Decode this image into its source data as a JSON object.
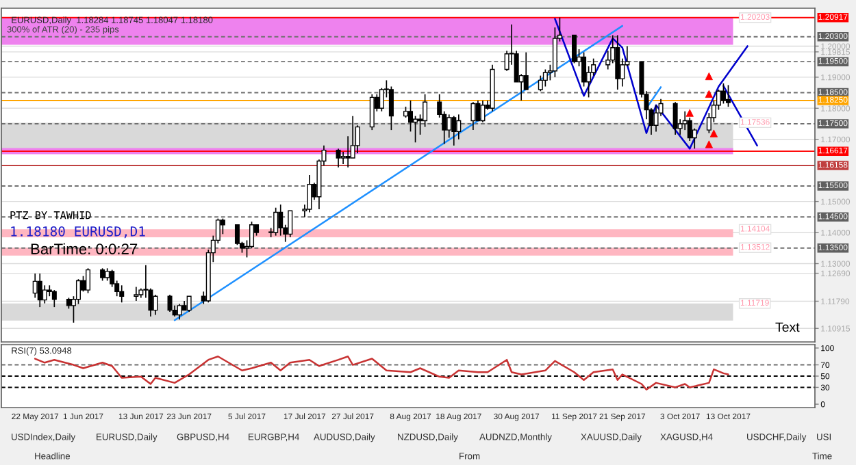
{
  "chart_data": [
    {
      "type": "candlestick",
      "title": "EURUSD,Daily  1.18284 1.18745 1.18047 1.18180",
      "x": [
        "2017-05-22",
        "2017-05-23",
        "2017-05-24",
        "2017-05-25",
        "2017-05-26",
        "2017-05-29",
        "2017-05-30",
        "2017-05-31",
        "2017-06-01",
        "2017-06-02",
        "2017-06-05",
        "2017-06-06",
        "2017-06-07",
        "2017-06-08",
        "2017-06-09",
        "2017-06-12",
        "2017-06-13",
        "2017-06-14",
        "2017-06-15",
        "2017-06-16",
        "2017-06-19",
        "2017-06-20",
        "2017-06-21",
        "2017-06-22",
        "2017-06-23",
        "2017-06-26",
        "2017-06-27",
        "2017-06-28",
        "2017-06-29",
        "2017-06-30",
        "2017-07-03",
        "2017-07-04",
        "2017-07-05",
        "2017-07-06",
        "2017-07-07",
        "2017-07-10",
        "2017-07-11",
        "2017-07-12",
        "2017-07-13",
        "2017-07-14",
        "2017-07-17",
        "2017-07-18",
        "2017-07-19",
        "2017-07-20",
        "2017-07-21",
        "2017-07-24",
        "2017-07-25",
        "2017-07-26",
        "2017-07-27",
        "2017-07-28",
        "2017-07-31",
        "2017-08-01",
        "2017-08-02",
        "2017-08-03",
        "2017-08-04",
        "2017-08-07",
        "2017-08-08",
        "2017-08-09",
        "2017-08-10",
        "2017-08-11",
        "2017-08-14",
        "2017-08-15",
        "2017-08-16",
        "2017-08-17",
        "2017-08-18",
        "2017-08-21",
        "2017-08-22",
        "2017-08-23",
        "2017-08-24",
        "2017-08-25",
        "2017-08-28",
        "2017-08-29",
        "2017-08-30",
        "2017-08-31",
        "2017-09-01",
        "2017-09-04",
        "2017-09-05",
        "2017-09-06",
        "2017-09-07",
        "2017-09-08",
        "2017-09-11",
        "2017-09-12",
        "2017-09-13",
        "2017-09-14",
        "2017-09-15",
        "2017-09-18",
        "2017-09-19",
        "2017-09-20",
        "2017-09-21",
        "2017-09-22",
        "2017-09-25",
        "2017-09-26",
        "2017-09-27",
        "2017-09-28",
        "2017-09-29",
        "2017-10-02",
        "2017-10-03",
        "2017-10-04",
        "2017-10-05",
        "2017-10-06",
        "2017-10-09",
        "2017-10-10",
        "2017-10-11",
        "2017-10-12",
        "2017-10-13"
      ],
      "ohlc": [
        [
          1.1205,
          1.1268,
          1.119,
          1.1243
        ],
        [
          1.1243,
          1.1268,
          1.116,
          1.1183
        ],
        [
          1.1183,
          1.123,
          1.1172,
          1.1215
        ],
        [
          1.1215,
          1.123,
          1.1195,
          1.121
        ],
        [
          1.121,
          1.1215,
          1.116,
          1.1185
        ],
        [
          1.1185,
          1.119,
          1.1155,
          1.1165
        ],
        [
          1.1165,
          1.1195,
          1.111,
          1.1185
        ],
        [
          1.1185,
          1.125,
          1.117,
          1.1245
        ],
        [
          1.1245,
          1.126,
          1.121,
          1.1215
        ],
        [
          1.1215,
          1.1285,
          1.1205,
          1.128
        ],
        [
          1.128,
          1.1285,
          1.1245,
          1.1255
        ],
        [
          1.1255,
          1.1285,
          1.1245,
          1.1275
        ],
        [
          1.1275,
          1.128,
          1.1225,
          1.1235
        ],
        [
          1.1235,
          1.1245,
          1.1195,
          1.121
        ],
        [
          1.121,
          1.123,
          1.1175,
          1.1195
        ],
        [
          1.1195,
          1.1225,
          1.118,
          1.12
        ],
        [
          1.12,
          1.122,
          1.119,
          1.1215
        ],
        [
          1.1215,
          1.1295,
          1.119,
          1.1215
        ],
        [
          1.1215,
          1.122,
          1.113,
          1.115
        ],
        [
          1.115,
          1.12,
          1.1135,
          1.1195
        ],
        [
          1.1195,
          1.12,
          1.1145,
          1.115
        ],
        [
          1.115,
          1.1165,
          1.113,
          1.1135
        ],
        [
          1.1135,
          1.117,
          1.112,
          1.1165
        ],
        [
          1.1165,
          1.118,
          1.115,
          1.115
        ],
        [
          1.115,
          1.1195,
          1.1145,
          1.1195
        ],
        [
          1.1195,
          1.121,
          1.117,
          1.118
        ],
        [
          1.118,
          1.1345,
          1.1175,
          1.1335
        ],
        [
          1.1335,
          1.139,
          1.1305,
          1.1375
        ],
        [
          1.1375,
          1.1445,
          1.1365,
          1.144
        ],
        [
          1.144,
          1.1445,
          1.1395,
          1.1425
        ],
        [
          1.1425,
          1.1425,
          1.136,
          1.1365
        ],
        [
          1.1365,
          1.137,
          1.1335,
          1.135
        ],
        [
          1.135,
          1.1375,
          1.132,
          1.1355
        ],
        [
          1.1355,
          1.1435,
          1.135,
          1.1425
        ],
        [
          1.1425,
          1.1425,
          1.139,
          1.14
        ],
        [
          1.14,
          1.1415,
          1.1385,
          1.14
        ],
        [
          1.14,
          1.148,
          1.139,
          1.1465
        ],
        [
          1.1465,
          1.149,
          1.139,
          1.1415
        ],
        [
          1.1415,
          1.1425,
          1.137,
          1.1395
        ],
        [
          1.1395,
          1.147,
          1.1385,
          1.147
        ],
        [
          1.147,
          1.149,
          1.145,
          1.1475
        ],
        [
          1.1475,
          1.1585,
          1.1465,
          1.1555
        ],
        [
          1.1555,
          1.156,
          1.1505,
          1.1515
        ],
        [
          1.1515,
          1.1635,
          1.1475,
          1.163
        ],
        [
          1.163,
          1.168,
          1.1615,
          1.1665
        ],
        [
          1.1665,
          1.167,
          1.161,
          1.164
        ],
        [
          1.164,
          1.166,
          1.162,
          1.1645
        ],
        [
          1.1645,
          1.171,
          1.161,
          1.164
        ],
        [
          1.164,
          1.1775,
          1.164,
          1.168
        ],
        [
          1.168,
          1.1745,
          1.1655,
          1.174
        ],
        [
          1.174,
          1.1845,
          1.173,
          1.1835
        ],
        [
          1.1835,
          1.1845,
          1.179,
          1.18
        ],
        [
          1.18,
          1.1865,
          1.179,
          1.186
        ],
        [
          1.186,
          1.189,
          1.1835,
          1.186
        ],
        [
          1.186,
          1.187,
          1.173,
          1.1775
        ],
        [
          1.1775,
          1.1805,
          1.177,
          1.179
        ],
        [
          1.179,
          1.1825,
          1.1725,
          1.1755
        ],
        [
          1.1755,
          1.1775,
          1.169,
          1.1765
        ],
        [
          1.1765,
          1.178,
          1.1715,
          1.176
        ],
        [
          1.176,
          1.1845,
          1.174,
          1.182
        ],
        [
          1.182,
          1.1845,
          1.177,
          1.178
        ],
        [
          1.178,
          1.179,
          1.1685,
          1.173
        ],
        [
          1.173,
          1.178,
          1.1705,
          1.177
        ],
        [
          1.177,
          1.1775,
          1.168,
          1.1725
        ],
        [
          1.1725,
          1.178,
          1.17,
          1.176
        ],
        [
          1.176,
          1.182,
          1.173,
          1.1815
        ],
        [
          1.1815,
          1.1825,
          1.176,
          1.176
        ],
        [
          1.176,
          1.1825,
          1.1755,
          1.181
        ],
        [
          1.181,
          1.1825,
          1.1795,
          1.18
        ],
        [
          1.18,
          1.194,
          1.179,
          1.1925
        ],
        [
          1.1925,
          1.1985,
          1.192,
          1.1975
        ],
        [
          1.1975,
          1.207,
          1.194,
          1.1975
        ],
        [
          1.1975,
          1.1985,
          1.1885,
          1.1885
        ],
        [
          1.1885,
          1.191,
          1.1825,
          1.1905
        ],
        [
          1.1905,
          1.198,
          1.186,
          1.186
        ],
        [
          1.186,
          1.1905,
          1.1855,
          1.189
        ],
        [
          1.189,
          1.1925,
          1.187,
          1.1915
        ],
        [
          1.1915,
          1.194,
          1.189,
          1.192
        ],
        [
          1.192,
          1.206,
          1.19,
          1.2025
        ],
        [
          1.2025,
          1.2092,
          1.2015,
          1.2035
        ],
        [
          1.2035,
          1.2035,
          1.1945,
          1.195
        ],
        [
          1.195,
          1.199,
          1.1935,
          1.1965
        ],
        [
          1.1965,
          1.198,
          1.187,
          1.1885
        ],
        [
          1.1885,
          1.1935,
          1.1835,
          1.1915
        ],
        [
          1.1915,
          1.196,
          1.1905,
          1.194
        ],
        [
          1.194,
          1.1985,
          1.1925,
          1.1955
        ],
        [
          1.1955,
          1.2035,
          1.1945,
          1.1995
        ],
        [
          1.1995,
          1.2035,
          1.186,
          1.1895
        ],
        [
          1.1895,
          1.196,
          1.187,
          1.194
        ],
        [
          1.194,
          1.2,
          1.1935,
          1.195
        ],
        [
          1.195,
          1.195,
          1.1835,
          1.1845
        ],
        [
          1.1845,
          1.1855,
          1.1765,
          1.1795
        ],
        [
          1.1795,
          1.18,
          1.1715,
          1.1745
        ],
        [
          1.1745,
          1.181,
          1.1725,
          1.1785
        ],
        [
          1.1785,
          1.183,
          1.1775,
          1.1815
        ],
        [
          1.1815,
          1.182,
          1.1715,
          1.1735
        ],
        [
          1.1735,
          1.1765,
          1.1715,
          1.175
        ],
        [
          1.175,
          1.179,
          1.173,
          1.176
        ],
        [
          1.176,
          1.177,
          1.1695,
          1.1705
        ],
        [
          1.1705,
          1.1735,
          1.167,
          1.173
        ],
        [
          1.173,
          1.1785,
          1.172,
          1.177
        ],
        [
          1.177,
          1.1825,
          1.1755,
          1.181
        ],
        [
          1.181,
          1.186,
          1.1795,
          1.1855
        ],
        [
          1.1855,
          1.188,
          1.1815,
          1.1825
        ],
        [
          1.18284,
          1.18745,
          1.18047,
          1.1818
        ]
      ],
      "series": [
        {
          "type": "line",
          "color": "#1e90ff",
          "x": [
            "2017-06-20",
            "2017-09-21"
          ],
          "values": [
            1.1118,
            1.2065
          ]
        },
        {
          "type": "line",
          "color": "#1e90ff",
          "x": [
            "2017-09-26",
            "2017-09-29"
          ],
          "values": [
            1.18,
            1.1868
          ]
        },
        {
          "type": "line",
          "color": "#0000cd",
          "x": [
            "2017-09-07",
            "2017-09-13",
            "2017-09-19",
            "2017-09-21",
            "2017-09-26",
            "2017-09-28",
            "2017-10-05",
            "2017-10-11",
            "2017-10-17"
          ],
          "values": [
            1.2088,
            1.184,
            1.2025,
            1.1995,
            1.172,
            1.181,
            1.167,
            1.187,
            1.2
          ]
        },
        {
          "type": "line",
          "color": "#0000cd",
          "x": [
            "2017-10-12",
            "2017-10-19"
          ],
          "values": [
            1.1872,
            1.168
          ]
        },
        {
          "type": "scatter",
          "color": "#ff0000",
          "marker": "triangle",
          "x": [
            "2017-10-05",
            "2017-10-09",
            "2017-10-09",
            "2017-10-10",
            "2017-10-09"
          ],
          "values": [
            1.1785,
            1.1846,
            1.1903,
            1.1719,
            1.1684
          ]
        }
      ],
      "xlim": [
        "2017-05-15",
        "2017-10-31"
      ],
      "ylim": [
        1.1048,
        1.2122
      ],
      "yticks": [
        {
          "value": 1.2,
          "label": "1.20000"
        },
        {
          "value": 1.19815,
          "label": "1.19815"
        },
        {
          "value": 1.19,
          "label": "1.19000"
        },
        {
          "value": 1.18,
          "label": "1.18000"
        },
        {
          "value": 1.17,
          "label": "1.17000"
        },
        {
          "value": 1.15,
          "label": "1.15000"
        },
        {
          "value": 1.14,
          "label": "1.14000"
        },
        {
          "value": 1.13,
          "label": "1.13000"
        },
        {
          "value": 1.1269,
          "label": "1.12690"
        },
        {
          "value": 1.1179,
          "label": "1.11790"
        },
        {
          "value": 1.10915,
          "label": "1.10915"
        }
      ],
      "tick_labels": "y",
      "grid": "y",
      "legend": false,
      "ref_lines": [
        {
          "axis": "y",
          "value": 1.20917,
          "label": "1.20917",
          "color": "#ff0000",
          "line_style": "solid"
        },
        {
          "axis": "y",
          "value": 1.203,
          "label": "1.20300",
          "color": "#707070",
          "line_style": "dashed"
        },
        {
          "axis": "y",
          "value": 1.195,
          "label": "1.19500",
          "color": "#707070",
          "line_style": "dashed"
        },
        {
          "axis": "y",
          "value": 1.185,
          "label": "1.18500",
          "color": "#707070",
          "line_style": "dashed"
        },
        {
          "axis": "y",
          "value": 1.1825,
          "label": "1.18250",
          "color": "#ffa500",
          "line_style": "solid"
        },
        {
          "axis": "y",
          "value": 1.175,
          "label": "1.17500",
          "color": "#707070",
          "line_style": "dashed"
        },
        {
          "axis": "y",
          "value": 1.16617,
          "label": "1.16617",
          "color": "#ff0000",
          "line_style": "solid"
        },
        {
          "axis": "y",
          "value": 1.16158,
          "label": "1.16158",
          "color": "#c04040",
          "line_style": "solid"
        },
        {
          "axis": "y",
          "value": 1.155,
          "label": "1.15500",
          "color": "#707070",
          "line_style": "dashed"
        },
        {
          "axis": "y",
          "value": 1.145,
          "label": "1.14500",
          "color": "#707070",
          "line_style": "dashed"
        },
        {
          "axis": "y",
          "value": 1.135,
          "label": "1.13500",
          "color": "#707070",
          "line_style": "dashed"
        }
      ],
      "bands": [
        {
          "axis": "y",
          "from": 1.2004,
          "to": 1.20917,
          "label": "1.20203",
          "color": "#ee82ee"
        },
        {
          "axis": "y",
          "from": 1.16617,
          "to": 1.17536,
          "label": "1.17536",
          "color": "#d9d9d9"
        },
        {
          "axis": "y",
          "from": 1.1652,
          "to": 1.1672,
          "color": "#ee82ee"
        },
        {
          "axis": "y",
          "from": 1.1385,
          "to": 1.14104,
          "label": "1.14104",
          "color": "#ffb6c1"
        },
        {
          "axis": "y",
          "from": 1.1326,
          "to": 1.13512,
          "label": "1.13512",
          "color": "#ffb6c1"
        },
        {
          "axis": "y",
          "from": 1.1117,
          "to": 1.11719,
          "label": "1.11719",
          "color": "#d9d9d9"
        }
      ],
      "annotations": [
        "300% of ATR (20) - 235 pips",
        "PTZ BY TAWHID",
        "1.18180 EURUSD,D1",
        "BarTime: 0:0:27",
        "Text"
      ]
    },
    {
      "type": "line",
      "title": "RSI(7) 53.0948",
      "series": [
        {
          "color": "#c83232",
          "x": [
            "2017-05-22",
            "2017-05-24",
            "2017-05-26",
            "2017-05-30",
            "2017-06-01",
            "2017-06-05",
            "2017-06-07",
            "2017-06-09",
            "2017-06-13",
            "2017-06-15",
            "2017-06-16",
            "2017-06-20",
            "2017-06-23",
            "2017-06-27",
            "2017-06-29",
            "2017-07-04",
            "2017-07-06",
            "2017-07-10",
            "2017-07-12",
            "2017-07-14",
            "2017-07-18",
            "2017-07-20",
            "2017-07-24",
            "2017-07-26",
            "2017-07-27",
            "2017-07-31",
            "2017-08-03",
            "2017-08-08",
            "2017-08-10",
            "2017-08-14",
            "2017-08-16",
            "2017-08-18",
            "2017-08-22",
            "2017-08-24",
            "2017-08-28",
            "2017-08-29",
            "2017-08-31",
            "2017-09-05",
            "2017-09-07",
            "2017-09-11",
            "2017-09-13",
            "2017-09-15",
            "2017-09-19",
            "2017-09-20",
            "2017-09-21",
            "2017-09-25",
            "2017-09-26",
            "2017-09-28",
            "2017-10-02",
            "2017-10-04",
            "2017-10-05",
            "2017-10-09",
            "2017-10-10",
            "2017-10-12",
            "2017-10-13"
          ],
          "values": [
            81,
            74,
            79,
            70,
            64,
            74,
            68,
            47,
            49,
            36,
            47,
            38,
            53,
            79,
            85,
            60,
            64,
            74,
            60,
            74,
            79,
            68,
            79,
            85,
            70,
            81,
            60,
            57,
            64,
            49,
            47,
            60,
            57,
            57,
            79,
            57,
            53,
            60,
            77,
            57,
            43,
            57,
            62,
            43,
            53,
            36,
            26,
            38,
            30,
            36,
            30,
            38,
            62,
            55,
            53
          ]
        }
      ],
      "xlim": [
        "2017-05-15",
        "2017-10-31"
      ],
      "xticks": [
        {
          "value": "2017-05-22",
          "label": "22 May 2017"
        },
        {
          "value": "2017-06-01",
          "label": "1 Jun 2017"
        },
        {
          "value": "2017-06-13",
          "label": "13 Jun 2017"
        },
        {
          "value": "2017-06-23",
          "label": "23 Jun 2017"
        },
        {
          "value": "2017-07-05",
          "label": "5 Jul 2017"
        },
        {
          "value": "2017-07-17",
          "label": "17 Jul 2017"
        },
        {
          "value": "2017-07-27",
          "label": "27 Jul 2017"
        },
        {
          "value": "2017-08-08",
          "label": "8 Aug 2017"
        },
        {
          "value": "2017-08-18",
          "label": "18 Aug 2017"
        },
        {
          "value": "2017-08-30",
          "label": "30 Aug 2017"
        },
        {
          "value": "2017-09-11",
          "label": "11 Sep 2017"
        },
        {
          "value": "2017-09-21",
          "label": "21 Sep 2017"
        },
        {
          "value": "2017-10-03",
          "label": "3 Oct 2017"
        },
        {
          "value": "2017-10-13",
          "label": "13 Oct 2017"
        }
      ],
      "ylim": [
        -6,
        106
      ],
      "yticks": [
        0,
        30,
        50,
        70,
        100
      ],
      "legend": false,
      "ref_lines": [
        {
          "axis": "y",
          "value": 70,
          "color": "#707070",
          "line_style": "dashed"
        },
        {
          "axis": "y",
          "value": 50,
          "color": "#000000",
          "line_style": "dashed"
        },
        {
          "axis": "y",
          "value": 30,
          "color": "#000000",
          "line_style": "dashed"
        }
      ],
      "annotations": [
        "USDIndex,Daily",
        "EURUSD,Daily",
        "GBPUSD,H4",
        "EURGBP,H4",
        "AUDUSD,Daily",
        "NZDUSD,Daily",
        "AUDNZD,Monthly",
        "XAUUSD,Daily",
        "XAGUSD,H4",
        "USDCHF,Daily",
        "USI",
        "Headline",
        "From",
        "Time"
      ]
    }
  ]
}
